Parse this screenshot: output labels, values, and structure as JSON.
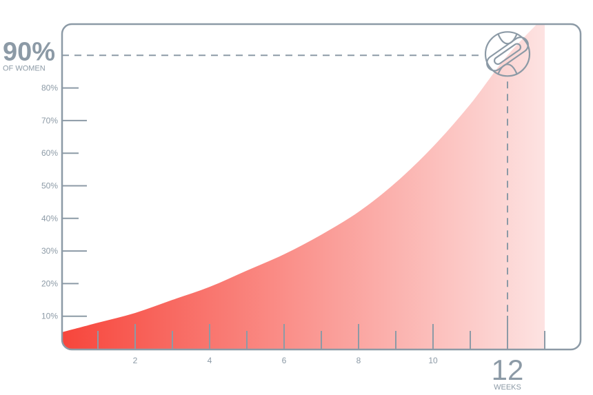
{
  "chart_data": {
    "type": "area",
    "xlim": [
      0,
      13
    ],
    "ylim": [
      0,
      100
    ],
    "x": [
      0,
      1,
      2,
      3,
      4,
      5,
      6,
      7,
      8,
      9,
      10,
      11,
      12,
      13
    ],
    "values": [
      5,
      8,
      11,
      15,
      19,
      24,
      29,
      35,
      42,
      51,
      62,
      75,
      90,
      102
    ],
    "x_ticks": [
      2,
      4,
      6,
      8,
      10
    ],
    "y_ticks": [
      "10%",
      "20%",
      "30%",
      "40%",
      "50%",
      "60%",
      "70%",
      "80%"
    ],
    "y_tick_values": [
      10,
      20,
      30,
      40,
      50,
      60,
      70,
      80
    ],
    "highlight": {
      "x": 12,
      "y": 90,
      "y_label": "90%",
      "y_caption": "OF WOMEN",
      "x_label": "12",
      "x_caption": "WEEKS"
    },
    "grid": false,
    "colors": {
      "fill_start": "#f7453b",
      "fill_end": "#fde3e2",
      "axis": "#8c9aa6"
    },
    "icon": "sanitary-pad-icon"
  }
}
